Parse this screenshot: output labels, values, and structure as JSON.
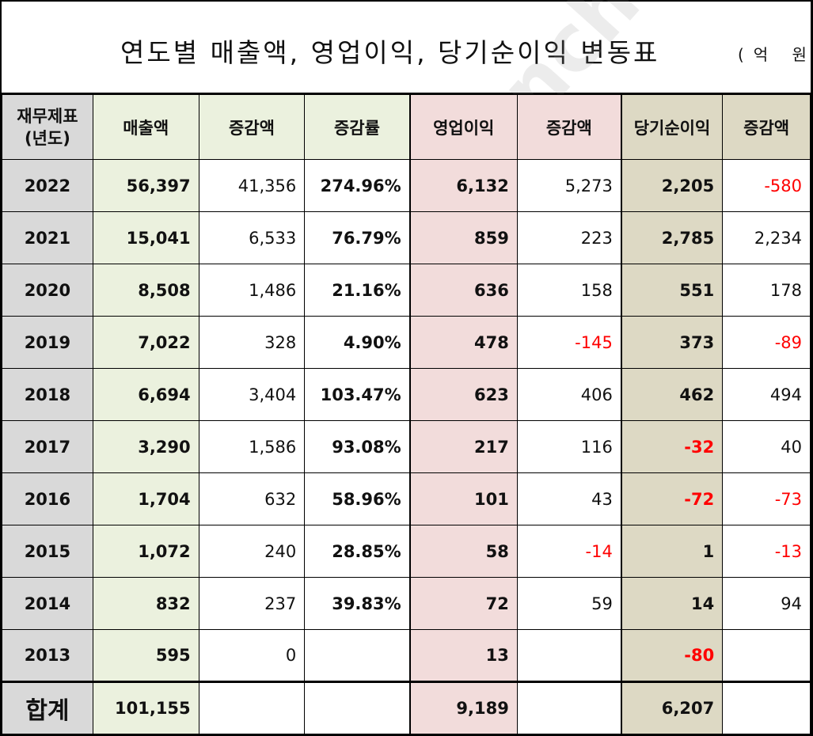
{
  "title": "연도별 매출액, 영업이익, 당기순이익 변동표",
  "unit": "(억 원)",
  "watermark": "StockOnePunch",
  "colors": {
    "year_bg": "#d9d9d9",
    "sales_bg": "#ebf1de",
    "operating_bg": "#f2dcdb",
    "net_bg": "#ddd9c4",
    "negative_text": "#ff0000"
  },
  "headers": [
    "재무제표\n(년도)",
    "매출액",
    "증감액",
    "증감률",
    "영업이익",
    "증감액",
    "당기순이익",
    "증감액"
  ],
  "rows": [
    {
      "year": "2022",
      "sales": "56,397",
      "sales_change": "41,356",
      "sales_rate": "274.96%",
      "operating": "6,132",
      "operating_change": "5,273",
      "net": "2,205",
      "net_change": "-580"
    },
    {
      "year": "2021",
      "sales": "15,041",
      "sales_change": "6,533",
      "sales_rate": "76.79%",
      "operating": "859",
      "operating_change": "223",
      "net": "2,785",
      "net_change": "2,234"
    },
    {
      "year": "2020",
      "sales": "8,508",
      "sales_change": "1,486",
      "sales_rate": "21.16%",
      "operating": "636",
      "operating_change": "158",
      "net": "551",
      "net_change": "178"
    },
    {
      "year": "2019",
      "sales": "7,022",
      "sales_change": "328",
      "sales_rate": "4.90%",
      "operating": "478",
      "operating_change": "-145",
      "net": "373",
      "net_change": "-89"
    },
    {
      "year": "2018",
      "sales": "6,694",
      "sales_change": "3,404",
      "sales_rate": "103.47%",
      "operating": "623",
      "operating_change": "406",
      "net": "462",
      "net_change": "494"
    },
    {
      "year": "2017",
      "sales": "3,290",
      "sales_change": "1,586",
      "sales_rate": "93.08%",
      "operating": "217",
      "operating_change": "116",
      "net": "-32",
      "net_change": "40"
    },
    {
      "year": "2016",
      "sales": "1,704",
      "sales_change": "632",
      "sales_rate": "58.96%",
      "operating": "101",
      "operating_change": "43",
      "net": "-72",
      "net_change": "-73"
    },
    {
      "year": "2015",
      "sales": "1,072",
      "sales_change": "240",
      "sales_rate": "28.85%",
      "operating": "58",
      "operating_change": "-14",
      "net": "1",
      "net_change": "-13"
    },
    {
      "year": "2014",
      "sales": "832",
      "sales_change": "237",
      "sales_rate": "39.83%",
      "operating": "72",
      "operating_change": "59",
      "net": "14",
      "net_change": "94"
    },
    {
      "year": "2013",
      "sales": "595",
      "sales_change": "0",
      "sales_rate": "",
      "operating": "13",
      "operating_change": "",
      "net": "-80",
      "net_change": ""
    }
  ],
  "total": {
    "label": "합계",
    "sales": "101,155",
    "operating": "9,189",
    "net": "6,207"
  }
}
